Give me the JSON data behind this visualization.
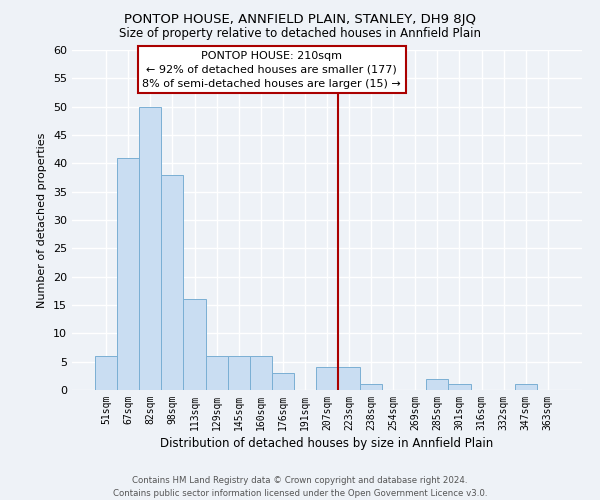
{
  "title": "PONTOP HOUSE, ANNFIELD PLAIN, STANLEY, DH9 8JQ",
  "subtitle": "Size of property relative to detached houses in Annfield Plain",
  "xlabel": "Distribution of detached houses by size in Annfield Plain",
  "ylabel": "Number of detached properties",
  "bin_labels": [
    "51sqm",
    "67sqm",
    "82sqm",
    "98sqm",
    "113sqm",
    "129sqm",
    "145sqm",
    "160sqm",
    "176sqm",
    "191sqm",
    "207sqm",
    "223sqm",
    "238sqm",
    "254sqm",
    "269sqm",
    "285sqm",
    "301sqm",
    "316sqm",
    "332sqm",
    "347sqm",
    "363sqm"
  ],
  "bar_heights": [
    6,
    41,
    50,
    38,
    16,
    6,
    6,
    6,
    3,
    0,
    4,
    4,
    1,
    0,
    0,
    2,
    1,
    0,
    0,
    1,
    0
  ],
  "bar_color": "#c9ddf2",
  "bar_edge_color": "#7aafd4",
  "vline_x_index": 10,
  "vline_color": "#aa0000",
  "annotation_title": "PONTOP HOUSE: 210sqm",
  "annotation_line1": "← 92% of detached houses are smaller (177)",
  "annotation_line2": "8% of semi-detached houses are larger (15) →",
  "annotation_box_color": "#ffffff",
  "annotation_box_edge_color": "#aa0000",
  "ylim": [
    0,
    60
  ],
  "yticks": [
    0,
    5,
    10,
    15,
    20,
    25,
    30,
    35,
    40,
    45,
    50,
    55,
    60
  ],
  "footer_line1": "Contains HM Land Registry data © Crown copyright and database right 2024.",
  "footer_line2": "Contains public sector information licensed under the Open Government Licence v3.0.",
  "bg_color": "#eef2f7"
}
